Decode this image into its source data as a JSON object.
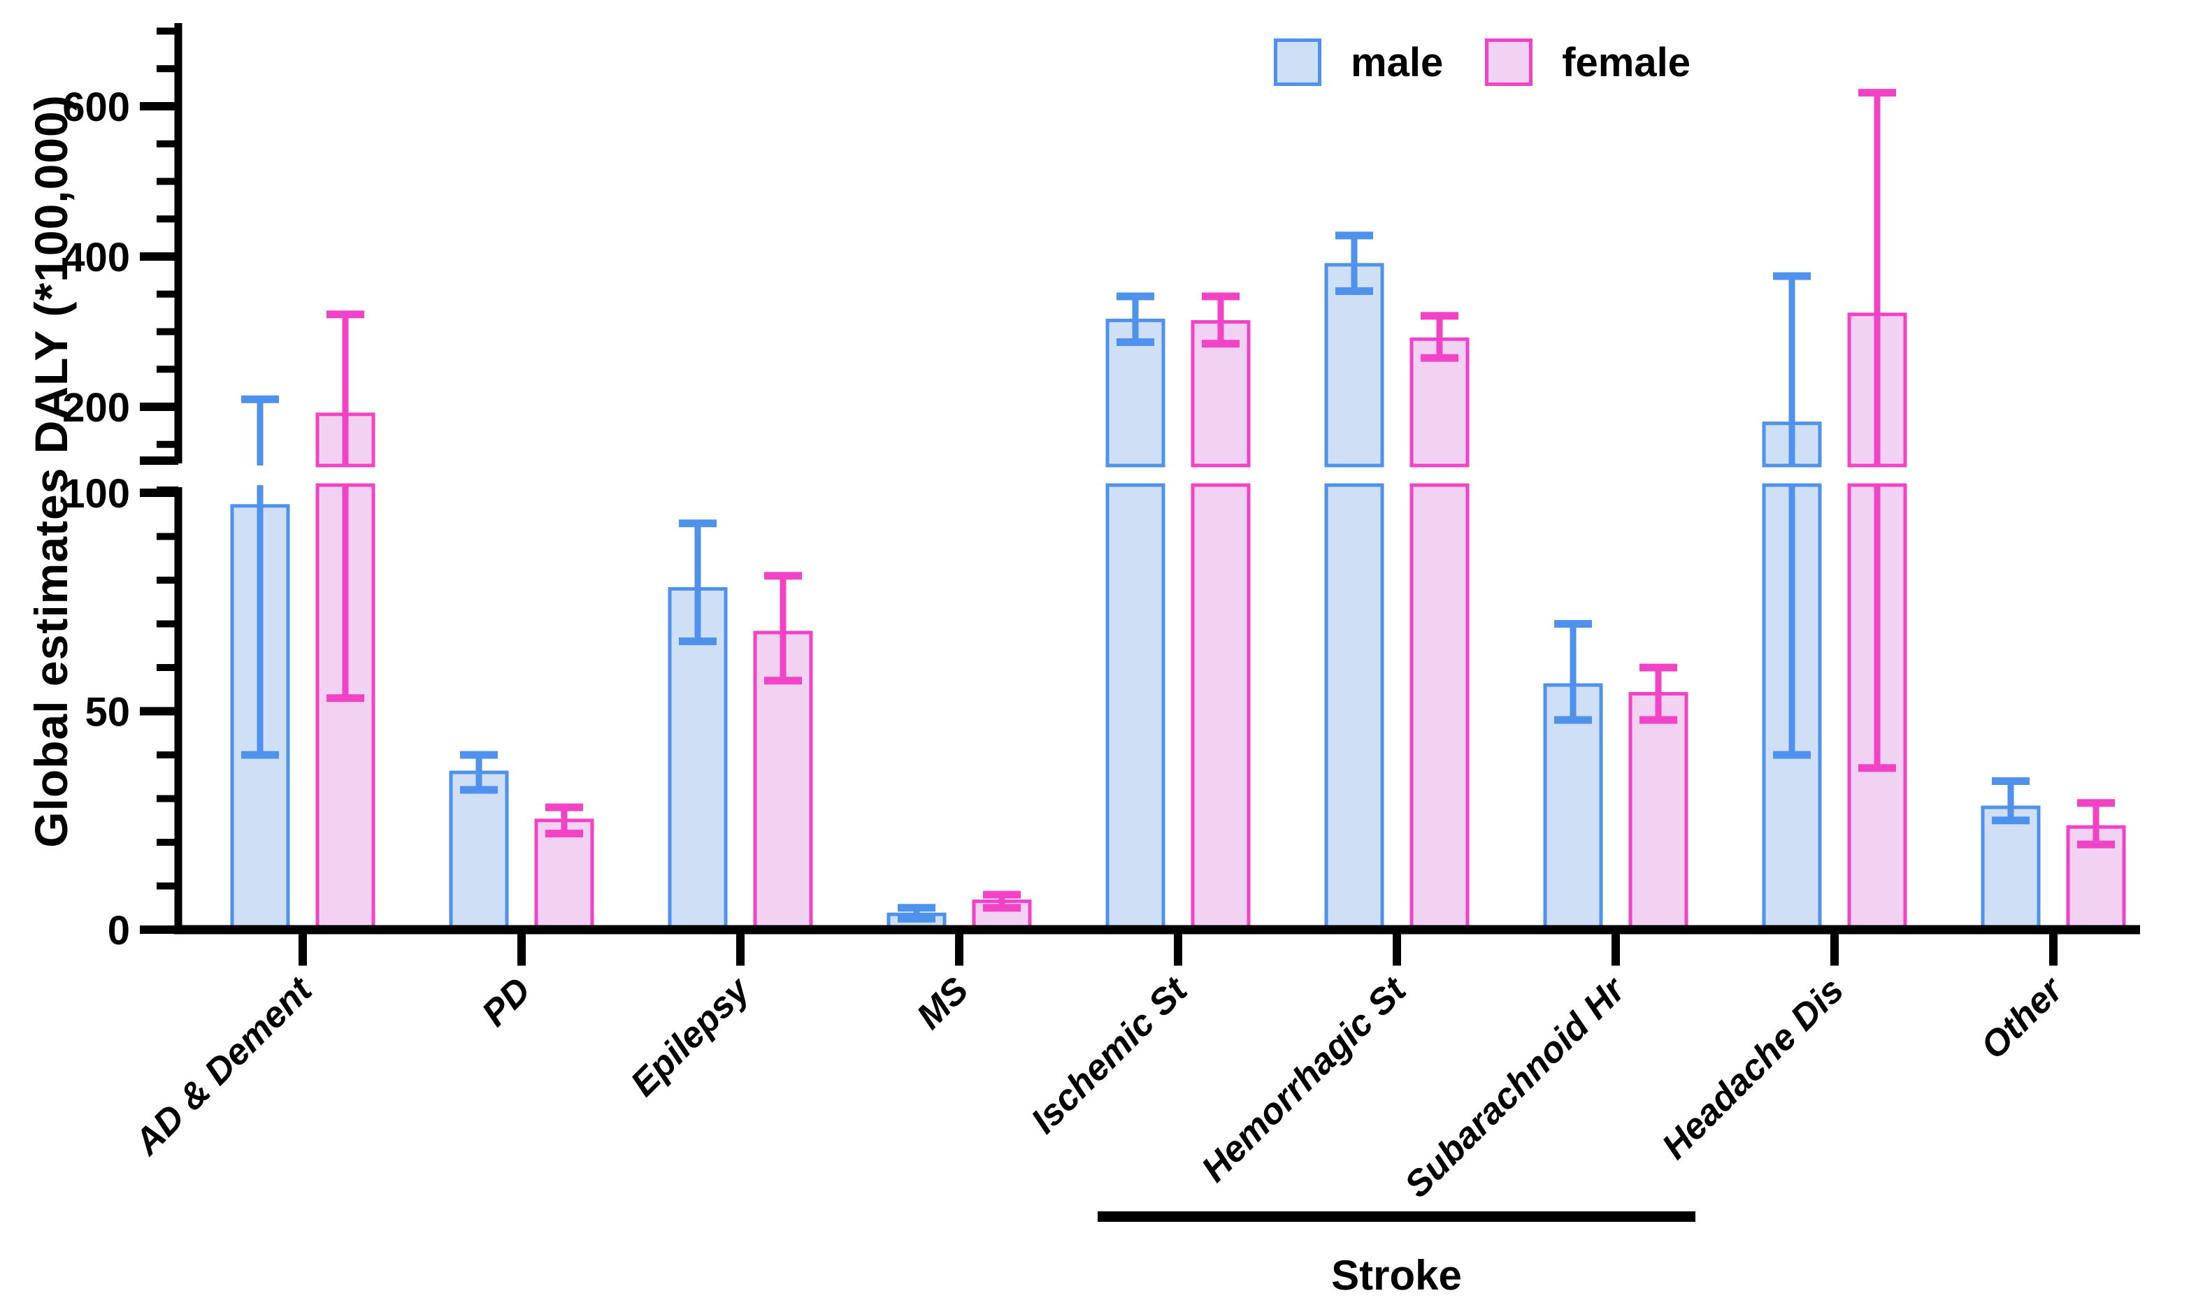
{
  "figure": {
    "background": "#ffffff"
  },
  "y_axis_title": "Global estimates DALY (*100,000)",
  "legend": {
    "male_label": "male",
    "female_label": "female"
  },
  "colors": {
    "male_fill": "#cfdff6",
    "male_stroke": "#4f92ee",
    "female_fill": "#f2d2f3",
    "female_stroke": "#f243c7",
    "axis": "#000000",
    "text": "#000000"
  },
  "chart_data": {
    "type": "bar",
    "title": "",
    "xlabel": "",
    "ylabel": "Global estimates DALY (*100,000)",
    "legend_position": "top",
    "grid": false,
    "categories": [
      "AD & Dement",
      "PD",
      "Epilepsy",
      "MS",
      "Ischemic St",
      "Hemorrhagic St",
      "Subarachnoid Hr",
      "Headache Dis",
      "Other"
    ],
    "series": [
      {
        "name": "male",
        "values": [
          97,
          36,
          78,
          3.5,
          315,
          389,
          56,
          178,
          28
        ],
        "err_low": [
          40,
          32,
          66,
          2.5,
          286,
          354,
          48,
          40,
          25
        ],
        "err_high": [
          210,
          40,
          93,
          5,
          347,
          428,
          70,
          374,
          34
        ]
      },
      {
        "name": "female",
        "values": [
          190,
          25,
          68,
          6.5,
          313,
          290,
          54,
          323,
          23.5
        ],
        "err_low": [
          53,
          22,
          57,
          5,
          284,
          265,
          48,
          37,
          19.5
        ],
        "err_high": [
          323,
          28,
          81,
          8,
          347,
          321,
          60,
          618,
          29
        ]
      }
    ],
    "axis_break": {
      "lower_range": [
        0,
        100
      ],
      "lower_ticks_major": [
        0,
        50,
        100
      ],
      "lower_tick_minor_step": 10,
      "upper_range": [
        125,
        710
      ],
      "upper_ticks_major": [
        200,
        400,
        600
      ],
      "upper_ticks_minor": [
        150,
        250,
        300,
        350,
        450,
        500,
        550,
        650,
        700
      ]
    },
    "group_annotation": {
      "label": "Stroke",
      "categories": [
        "Ischemic St",
        "Hemorrhagic St",
        "Subarachnoid Hr"
      ]
    }
  }
}
